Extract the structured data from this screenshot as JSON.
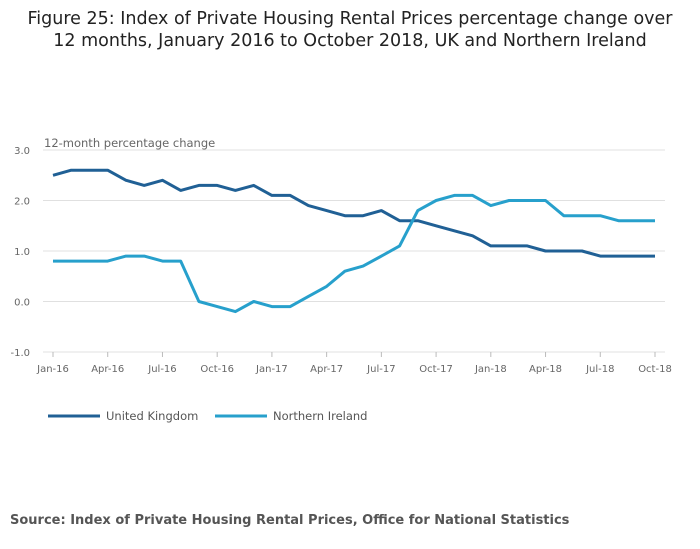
{
  "title_line1": "Figure 25: Index of Private Housing Rental Prices percentage change over",
  "title_line2": "12 months, January 2016 to October 2018, UK and Northern Ireland",
  "source": "Source: Index of Private Housing Rental Prices, Office for National Statistics",
  "chart_data": {
    "type": "line",
    "title": "Figure 25: Index of Private Housing Rental Prices percentage change over 12 months, January 2016 to October 2018, UK and Northern Ireland",
    "ylabel": "12-month percentage change",
    "xlabel": "",
    "ylim": [
      -1,
      3
    ],
    "yticks": [
      "3.0",
      "2.0",
      "1.0",
      "0.0",
      "-1.0"
    ],
    "ytick_values": [
      3,
      2,
      1,
      0,
      -1
    ],
    "xticks": [
      "Jan-16",
      "Apr-16",
      "Jul-16",
      "Oct-16",
      "Jan-17",
      "Apr-17",
      "Jul-17",
      "Oct-17",
      "Jan-18",
      "Apr-18",
      "Jul-18",
      "Oct-18"
    ],
    "xtick_index": [
      0,
      3,
      6,
      9,
      12,
      15,
      18,
      21,
      24,
      27,
      30,
      33
    ],
    "months": 34,
    "grid": true,
    "legend_position": "bottom-left",
    "series": [
      {
        "name": "United Kingdom",
        "color": "#206095",
        "values": [
          2.5,
          2.6,
          2.6,
          2.6,
          2.4,
          2.3,
          2.4,
          2.2,
          2.3,
          2.3,
          2.2,
          2.3,
          2.1,
          2.1,
          1.9,
          1.8,
          1.7,
          1.7,
          1.8,
          1.6,
          1.6,
          1.5,
          1.4,
          1.3,
          1.1,
          1.1,
          1.1,
          1.0,
          1.0,
          1.0,
          0.9,
          0.9,
          0.9,
          0.9
        ]
      },
      {
        "name": "Northern Ireland",
        "color": "#27a0cc",
        "values": [
          0.8,
          0.8,
          0.8,
          0.8,
          0.9,
          0.9,
          0.8,
          0.8,
          0.0,
          -0.1,
          -0.2,
          0.0,
          -0.1,
          -0.1,
          0.1,
          0.3,
          0.6,
          0.7,
          0.9,
          1.1,
          1.8,
          2.0,
          2.1,
          2.1,
          1.9,
          2.0,
          2.0,
          2.0,
          1.7,
          1.7,
          1.7,
          1.6,
          1.6,
          1.6
        ]
      }
    ]
  }
}
